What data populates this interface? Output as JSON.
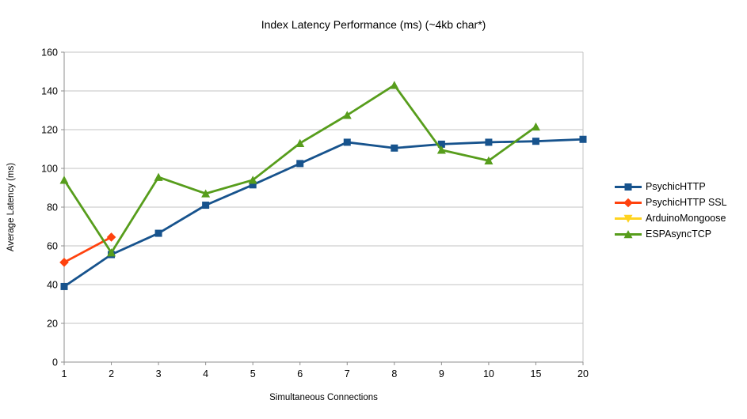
{
  "chart_data": {
    "type": "line",
    "title": "Index Latency Performance (ms) (~4kb char*)",
    "xlabel": "Simultaneous Connections",
    "ylabel": "Average Latency (ms)",
    "categories": [
      "1",
      "2",
      "3",
      "4",
      "5",
      "6",
      "7",
      "8",
      "9",
      "10",
      "15",
      "20"
    ],
    "y_ticks": [
      0,
      20,
      40,
      60,
      80,
      100,
      120,
      140,
      160
    ],
    "ylim": [
      0,
      160
    ],
    "grid": "horizontal",
    "legend_position": "right",
    "series": [
      {
        "name": "PsychicHTTP",
        "color": "#17538D",
        "marker": "square",
        "values": [
          39,
          55.5,
          66.5,
          81,
          91.5,
          102.5,
          113.5,
          110.5,
          112.5,
          113.5,
          114,
          115
        ]
      },
      {
        "name": "PsychicHTTP SSL",
        "color": "#FF420E",
        "marker": "diamond",
        "values": [
          51.5,
          64.5,
          null,
          null,
          null,
          null,
          null,
          null,
          null,
          null,
          null,
          null
        ]
      },
      {
        "name": "ArduinoMongoose",
        "color": "#FFD320",
        "marker": "triangle-down",
        "values": [
          null,
          null,
          null,
          null,
          null,
          null,
          null,
          null,
          null,
          null,
          null,
          null
        ]
      },
      {
        "name": "ESPAsyncTCP",
        "color": "#579D1C",
        "marker": "triangle-up",
        "values": [
          94,
          56.5,
          95.5,
          87,
          94,
          113,
          127.5,
          143,
          109.5,
          104,
          121.5,
          null
        ]
      }
    ]
  },
  "colors": {
    "background": "#ffffff",
    "grid": "#c3c3c3",
    "axis": "#8f8f8f",
    "text": "#000000"
  }
}
